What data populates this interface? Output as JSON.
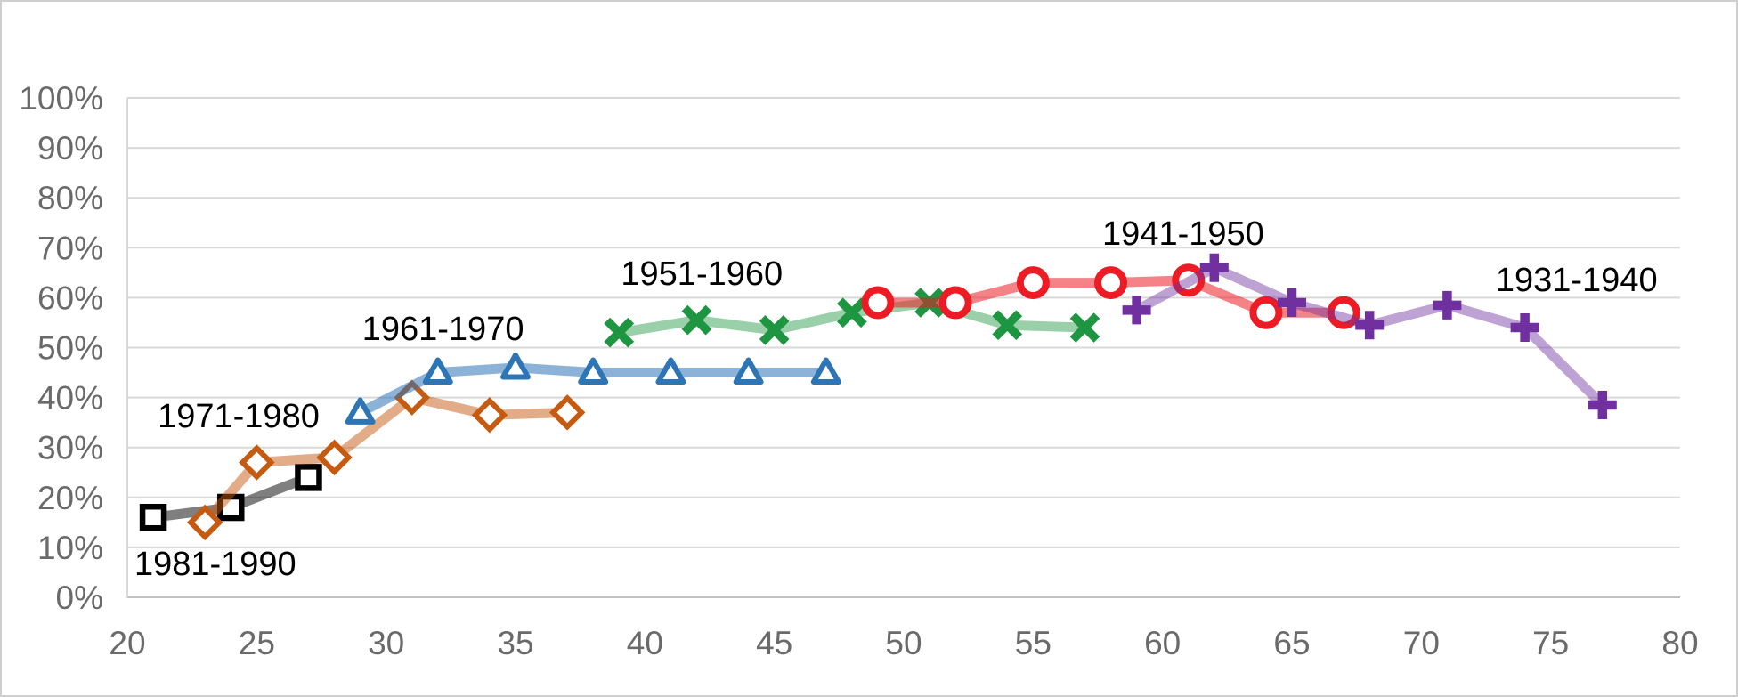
{
  "chart_data": {
    "type": "line",
    "title": "",
    "xlabel": "",
    "ylabel": "",
    "legend_position": "none (inline series labels)",
    "grid": "horizontal",
    "x_axis": {
      "min": 20,
      "max": 80,
      "step": 5,
      "tick_values": [
        20,
        25,
        30,
        35,
        40,
        45,
        50,
        55,
        60,
        65,
        70,
        75,
        80
      ],
      "tick_labels": [
        "20",
        "25",
        "30",
        "35",
        "40",
        "45",
        "50",
        "55",
        "60",
        "65",
        "70",
        "75",
        "80"
      ]
    },
    "y_axis": {
      "min": 0,
      "max": 100,
      "step": 10,
      "tick_values": [
        0,
        10,
        20,
        30,
        40,
        50,
        60,
        70,
        80,
        90,
        100
      ],
      "tick_labels": [
        "0%",
        "10%",
        "20%",
        "30%",
        "40%",
        "50%",
        "60%",
        "70%",
        "80%",
        "90%",
        "100%"
      ]
    },
    "series": [
      {
        "name": "1981-1990",
        "marker": "square",
        "color": "#000000",
        "line_color": "rgba(0,0,0,0.5)",
        "points": [
          [
            21,
            16
          ],
          [
            24,
            18
          ],
          [
            27,
            24
          ]
        ],
        "label_pos": [
          23.4,
          6.8
        ]
      },
      {
        "name": "1971-1980",
        "marker": "diamond",
        "color": "#C55A11",
        "line_color": "rgba(197,90,17,0.5)",
        "points": [
          [
            23,
            15
          ],
          [
            25,
            27
          ],
          [
            28,
            28
          ],
          [
            31,
            40
          ],
          [
            34,
            36.5
          ],
          [
            37,
            37
          ]
        ],
        "label_pos": [
          24.3,
          36.4
        ]
      },
      {
        "name": "1961-1970",
        "marker": "triangle",
        "color": "#2E75B6",
        "line_color": "rgba(46,117,182,0.55)",
        "points": [
          [
            29,
            37
          ],
          [
            32,
            45
          ],
          [
            35,
            46
          ],
          [
            38,
            45
          ],
          [
            41,
            45
          ],
          [
            44,
            45
          ],
          [
            47,
            45
          ]
        ],
        "label_pos": [
          32.2,
          53.8
        ]
      },
      {
        "name": "1951-1960",
        "marker": "x",
        "color": "#1E9641",
        "line_color": "rgba(30,150,65,0.45)",
        "points": [
          [
            39,
            53
          ],
          [
            42,
            55.5
          ],
          [
            45,
            53.5
          ],
          [
            48,
            57
          ],
          [
            51,
            59
          ],
          [
            54,
            54.5
          ],
          [
            57,
            54
          ]
        ],
        "label_pos": [
          42.2,
          64.9
        ]
      },
      {
        "name": "1941-1950",
        "marker": "circle",
        "color": "#ED1C24",
        "line_color": "rgba(237,28,36,0.55)",
        "points": [
          [
            49,
            59
          ],
          [
            52,
            59
          ],
          [
            55,
            63
          ],
          [
            58,
            63
          ],
          [
            61,
            63.5
          ],
          [
            64,
            57
          ],
          [
            67,
            57
          ]
        ],
        "label_pos": [
          60.8,
          72.9
        ]
      },
      {
        "name": "1931-1940",
        "marker": "plus",
        "color": "#7030A0",
        "line_color": "rgba(112,48,160,0.45)",
        "points": [
          [
            59,
            57.5
          ],
          [
            62,
            66
          ],
          [
            65,
            59
          ],
          [
            68,
            54.5
          ],
          [
            71,
            58.5
          ],
          [
            74,
            54
          ],
          [
            77,
            38.5
          ]
        ],
        "label_pos": [
          76.0,
          63.6
        ]
      }
    ],
    "style": {
      "gridline_color": "#D9D9D9",
      "baseline_color": "#C0C0C0",
      "axis_text_color": "#6A6A6A",
      "series_label_color": "#000000",
      "background": "#FFFFFF"
    }
  }
}
